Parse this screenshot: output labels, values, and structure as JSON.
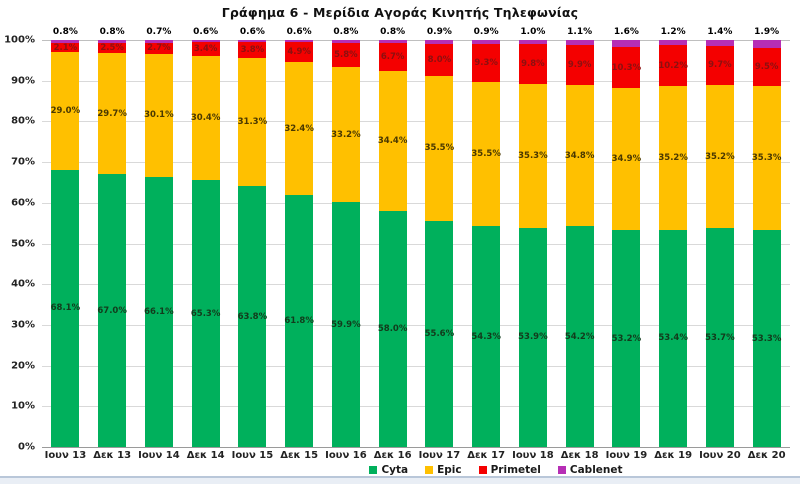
{
  "title": "Γράφημα 6 - Μερίδια Αγοράς Κινητής Τηλεφωνίας",
  "chart_data": {
    "type": "bar",
    "stacked": true,
    "title": "Γράφημα 6 - Μερίδια Αγοράς Κινητής Τηλεφωνίας",
    "categories": [
      "Ιουν 13",
      "Δεκ 13",
      "Ιουν 14",
      "Δεκ 14",
      "Ιουν 15",
      "Δεκ 15",
      "Ιουν 16",
      "Δεκ 16",
      "Ιουν 17",
      "Δεκ 17",
      "Ιουν 18",
      "Δεκ 18",
      "Ιουν 19",
      "Δεκ 19",
      "Ιουν 20",
      "Δεκ 20"
    ],
    "series": [
      {
        "name": "Cyta",
        "color": "#00B05C",
        "label_color": "#123b1c",
        "values": [
          68.1,
          67.0,
          66.1,
          65.3,
          63.8,
          61.8,
          59.9,
          58.0,
          55.6,
          54.3,
          53.9,
          54.2,
          53.2,
          53.4,
          53.7,
          53.3
        ]
      },
      {
        "name": "Epic",
        "color": "#FFC000",
        "label_color": "#4a3800",
        "values": [
          29.0,
          29.7,
          30.1,
          30.4,
          31.3,
          32.4,
          33.2,
          34.4,
          35.5,
          35.5,
          35.3,
          34.8,
          34.9,
          35.2,
          35.2,
          35.3
        ]
      },
      {
        "name": "Primetel",
        "color": "#F40000",
        "label_color": "#8c1010",
        "values": [
          2.1,
          2.5,
          2.7,
          3.4,
          3.8,
          4.9,
          5.8,
          6.7,
          8.0,
          9.3,
          9.8,
          9.9,
          10.3,
          10.2,
          9.7,
          9.5
        ]
      },
      {
        "name": "Cablenet",
        "color": "#B62EB5",
        "label_color": "#000000",
        "label_outside": true,
        "values": [
          0.8,
          0.8,
          0.7,
          0.6,
          0.6,
          0.6,
          0.8,
          0.8,
          0.9,
          0.9,
          1.0,
          1.1,
          1.6,
          1.2,
          1.4,
          1.9
        ]
      }
    ],
    "y_ticks": [
      "100%",
      "90%",
      "80%",
      "70%",
      "60%",
      "50%",
      "40%",
      "30%",
      "20%",
      "10%",
      "0%"
    ],
    "ylim": [
      0,
      100
    ],
    "grid": true,
    "legend_position": "bottom",
    "value_suffix": "%"
  }
}
